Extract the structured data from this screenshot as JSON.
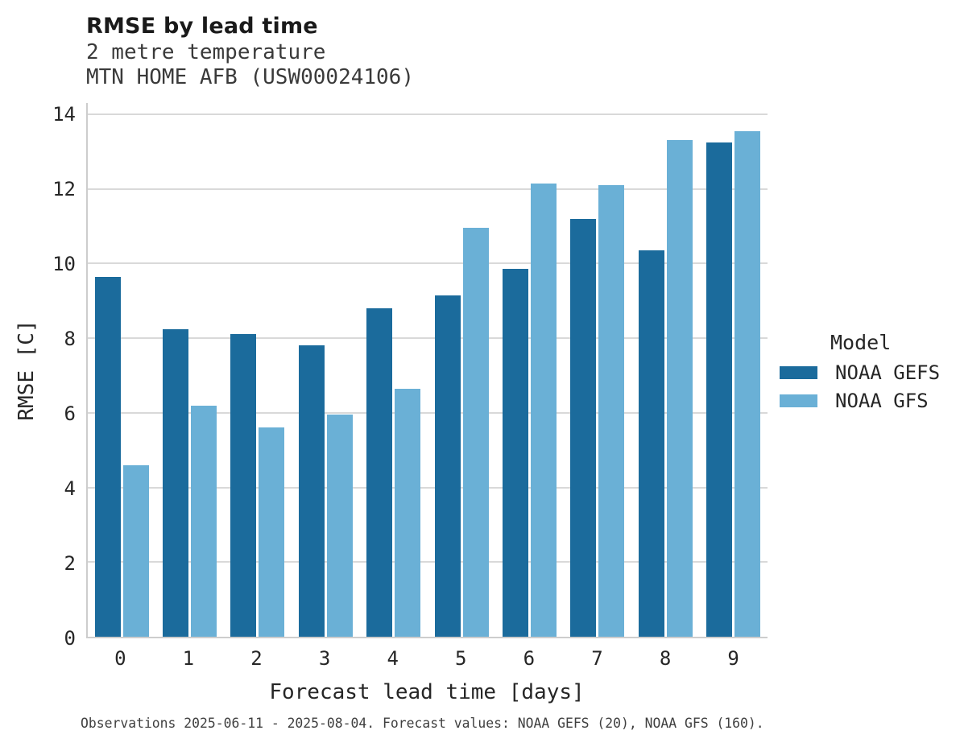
{
  "header": {
    "title": "RMSE by lead time",
    "subtitle_line1": "2 metre temperature",
    "subtitle_line2": "MTN HOME AFB (USW00024106)"
  },
  "chart_data": {
    "type": "bar",
    "title": "RMSE by lead time",
    "subtitle": [
      "2 metre temperature",
      "MTN HOME AFB (USW00024106)"
    ],
    "categories": [
      "0",
      "1",
      "2",
      "3",
      "4",
      "5",
      "6",
      "7",
      "8",
      "9"
    ],
    "series": [
      {
        "name": "NOAA GEFS",
        "color": "#1b6b9c",
        "values": [
          9.65,
          8.25,
          8.1,
          7.8,
          8.8,
          9.15,
          9.85,
          11.2,
          10.35,
          13.25
        ]
      },
      {
        "name": "NOAA GFS",
        "color": "#6ab0d6",
        "values": [
          4.6,
          6.2,
          5.6,
          5.95,
          6.65,
          10.95,
          12.15,
          12.1,
          13.3,
          13.55
        ]
      }
    ],
    "xlabel": "Forecast lead time [days]",
    "ylabel": "RMSE [C]",
    "ylim": [
      0,
      14.3
    ],
    "yticks": [
      0,
      2,
      4,
      6,
      8,
      10,
      12,
      14
    ],
    "grid": "horizontal",
    "legend_title": "Model",
    "legend_position": "right-center"
  },
  "legend": {
    "title": "Model"
  },
  "footer": {
    "note": "Observations 2025-06-11 - 2025-08-04. Forecast values: NOAA GEFS (20), NOAA GFS (160)."
  },
  "colors": {
    "gefs_dark_blue": "#1b6b9c",
    "gfs_light_blue": "#6ab0d6",
    "gridline": "#d9d9d9",
    "spine": "#cdcdcd",
    "text": "#262626",
    "footer_text": "#404040"
  }
}
